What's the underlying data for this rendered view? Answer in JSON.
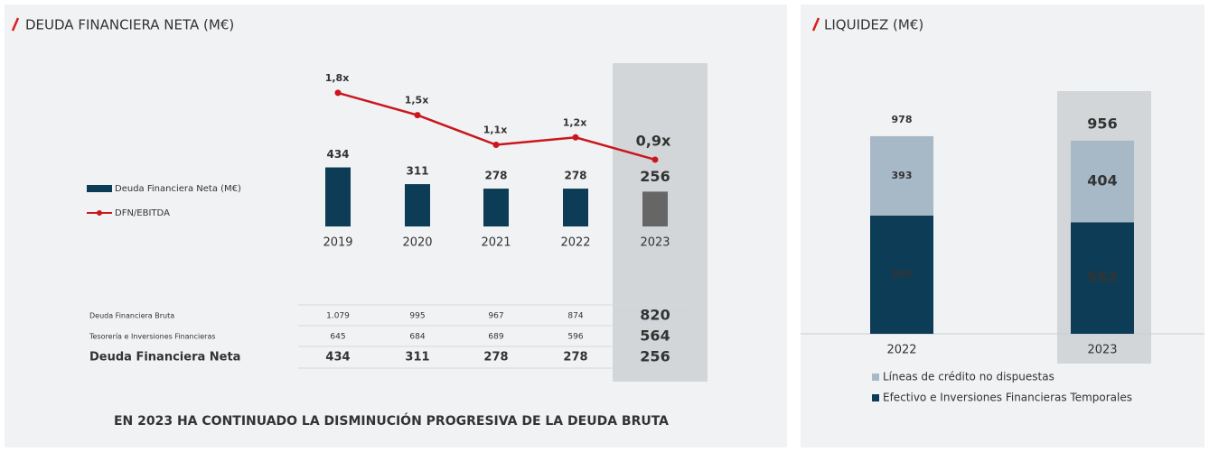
{
  "chart_data": [
    {
      "type": "bar",
      "title": "DEUDA FINANCIERA NETA (M€)",
      "categories": [
        "2019",
        "2020",
        "2021",
        "2022",
        "2023"
      ],
      "series": [
        {
          "name": "Deuda Financiera Neta (M€)",
          "color": "#0d3d56",
          "colors": [
            "#0d3d56",
            "#0d3d56",
            "#0d3d56",
            "#0d3d56",
            "#666666"
          ],
          "values": [
            434,
            311,
            278,
            278,
            256
          ]
        },
        {
          "name": "DFN/EBITDA",
          "color": "#c8171d",
          "axis": "y2",
          "values": [
            1.8,
            1.5,
            1.1,
            1.2,
            0.9
          ],
          "value_labels": [
            "1,8x",
            "1,5x",
            "1,1x",
            "1,2x",
            "0,9x"
          ]
        }
      ],
      "ylim": [
        0,
        1200
      ],
      "y2lim": [
        0,
        2.2
      ]
    },
    {
      "type": "stacked_bar",
      "title": "LIQUIDEZ (M€)",
      "categories": [
        "2022",
        "2023"
      ],
      "series": [
        {
          "name": "Efectivo e Inversiones Financieras Temporales",
          "color": "#0d3d56",
          "values": [
            585,
            552
          ]
        },
        {
          "name": "Líneas de crédito no dispuestas",
          "color": "#a7b9c7",
          "values": [
            393,
            404
          ]
        }
      ],
      "totals": [
        978,
        956
      ],
      "ylim": [
        0,
        1000
      ]
    }
  ],
  "table": {
    "rows": [
      [
        "Deuda Financiera Bruta",
        "1.079",
        995,
        967,
        874,
        820
      ],
      [
        "Tesorería e Inversiones Financieras",
        645,
        684,
        689,
        596,
        564
      ],
      [
        "Deuda Financiera Neta",
        434,
        311,
        278,
        278,
        256
      ]
    ]
  },
  "footer": "EN 2023 HA CONTINUADO LA DISMINUCIÓN PROGRESIVA DE LA DEUDA BRUTA"
}
